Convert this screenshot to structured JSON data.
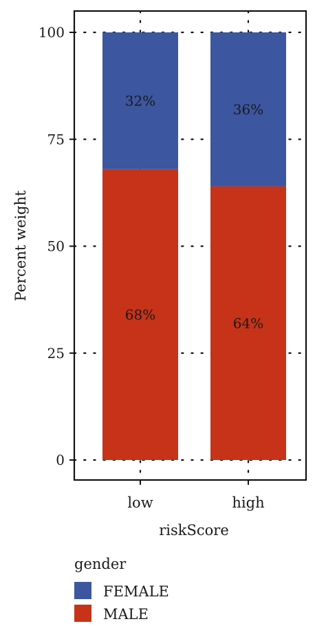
{
  "chart_data": {
    "type": "bar",
    "stacked": true,
    "categories": [
      "low",
      "high"
    ],
    "series": [
      {
        "name": "MALE",
        "values": [
          68,
          64
        ],
        "labels": [
          "68%",
          "64%"
        ],
        "color": "#C63319"
      },
      {
        "name": "FEMALE",
        "values": [
          32,
          36
        ],
        "labels": [
          "32%",
          "36%"
        ],
        "color": "#3C56A0"
      }
    ],
    "xlabel": "riskScore",
    "ylabel": "Percent weight",
    "ylim": [
      0,
      100
    ],
    "yticks": [
      0,
      25,
      50,
      75,
      100
    ],
    "grid": true,
    "grid_style": "dotted",
    "legend": {
      "title": "gender",
      "placement": "bottom-left",
      "entries": [
        {
          "label": "FEMALE",
          "color": "#3C56A0"
        },
        {
          "label": "MALE",
          "color": "#C63319"
        }
      ]
    }
  }
}
